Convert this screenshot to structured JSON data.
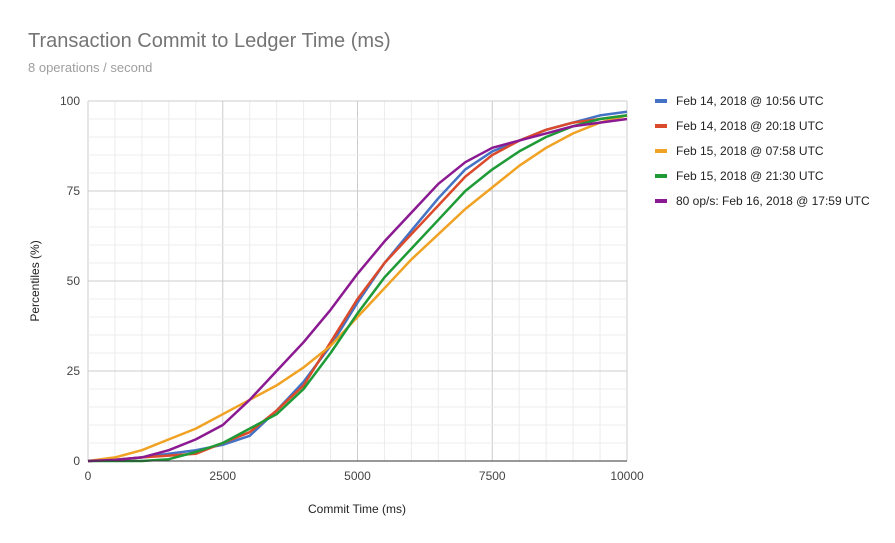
{
  "chart_data": {
    "type": "line",
    "title": "Transaction Commit to Ledger Time (ms)",
    "subtitle": "8 operations / second",
    "xlabel": "Commit Time (ms)",
    "ylabel": "Percentiles (%)",
    "xlim": [
      0,
      10000
    ],
    "ylim": [
      0,
      100
    ],
    "x_ticks": [
      "0",
      "2500",
      "5000",
      "7500",
      "10000"
    ],
    "y_ticks": [
      "0",
      "25",
      "50",
      "75",
      "100"
    ],
    "grid": true,
    "legend_position": "right",
    "series": [
      {
        "name": "Feb 14, 2018 @ 10:56 UTC",
        "color": "#4472c4",
        "points": [
          [
            0,
            0
          ],
          [
            500,
            0.3
          ],
          [
            1000,
            1
          ],
          [
            1500,
            2
          ],
          [
            2000,
            3
          ],
          [
            2500,
            4.5
          ],
          [
            3000,
            7
          ],
          [
            3500,
            14
          ],
          [
            4000,
            22
          ],
          [
            4500,
            32
          ],
          [
            5000,
            44
          ],
          [
            5500,
            55
          ],
          [
            6000,
            64
          ],
          [
            6500,
            73
          ],
          [
            7000,
            81
          ],
          [
            7500,
            86
          ],
          [
            8000,
            89
          ],
          [
            8500,
            92
          ],
          [
            9000,
            94
          ],
          [
            9500,
            96
          ],
          [
            10000,
            97
          ]
        ]
      },
      {
        "name": "Feb 14, 2018 @ 20:18 UTC",
        "color": "#db4a2b",
        "points": [
          [
            0,
            0
          ],
          [
            500,
            0.3
          ],
          [
            1000,
            1
          ],
          [
            1500,
            1.5
          ],
          [
            2000,
            2
          ],
          [
            2500,
            5
          ],
          [
            3000,
            8
          ],
          [
            3500,
            14
          ],
          [
            4000,
            21
          ],
          [
            4500,
            33
          ],
          [
            5000,
            45
          ],
          [
            5500,
            55
          ],
          [
            6000,
            63
          ],
          [
            6500,
            71
          ],
          [
            7000,
            79
          ],
          [
            7500,
            85
          ],
          [
            8000,
            89
          ],
          [
            8500,
            92
          ],
          [
            9000,
            94
          ],
          [
            9500,
            95
          ],
          [
            10000,
            96
          ]
        ]
      },
      {
        "name": "Feb 15, 2018 @ 07:58 UTC",
        "color": "#f0a224",
        "points": [
          [
            0,
            0
          ],
          [
            500,
            1
          ],
          [
            1000,
            3
          ],
          [
            1500,
            6
          ],
          [
            2000,
            9
          ],
          [
            2500,
            13
          ],
          [
            3000,
            17
          ],
          [
            3500,
            21
          ],
          [
            4000,
            26
          ],
          [
            4500,
            32
          ],
          [
            5000,
            40
          ],
          [
            5500,
            48
          ],
          [
            6000,
            56
          ],
          [
            6500,
            63
          ],
          [
            7000,
            70
          ],
          [
            7500,
            76
          ],
          [
            8000,
            82
          ],
          [
            8500,
            87
          ],
          [
            9000,
            91
          ],
          [
            9500,
            94
          ],
          [
            10000,
            96
          ]
        ]
      },
      {
        "name": "Feb 15, 2018 @ 21:30 UTC",
        "color": "#1e9a37",
        "points": [
          [
            0,
            0
          ],
          [
            1000,
            0
          ],
          [
            1500,
            0.5
          ],
          [
            2000,
            2.5
          ],
          [
            2500,
            5
          ],
          [
            3000,
            9
          ],
          [
            3500,
            13
          ],
          [
            4000,
            20
          ],
          [
            4500,
            30
          ],
          [
            5000,
            41
          ],
          [
            5500,
            51
          ],
          [
            6000,
            59
          ],
          [
            6500,
            67
          ],
          [
            7000,
            75
          ],
          [
            7500,
            81
          ],
          [
            8000,
            86
          ],
          [
            8500,
            90
          ],
          [
            9000,
            93
          ],
          [
            9500,
            95
          ],
          [
            10000,
            96
          ]
        ]
      },
      {
        "name": "80 op/s: Feb 16, 2018 @ 17:59 UTC",
        "color": "#8b1a92",
        "points": [
          [
            0,
            0
          ],
          [
            500,
            0.3
          ],
          [
            1000,
            1
          ],
          [
            1500,
            3
          ],
          [
            2000,
            6
          ],
          [
            2500,
            10
          ],
          [
            3000,
            17
          ],
          [
            3500,
            25
          ],
          [
            4000,
            33
          ],
          [
            4500,
            42
          ],
          [
            5000,
            52
          ],
          [
            5500,
            61
          ],
          [
            6000,
            69
          ],
          [
            6500,
            77
          ],
          [
            7000,
            83
          ],
          [
            7500,
            87
          ],
          [
            8000,
            89
          ],
          [
            8500,
            91
          ],
          [
            9000,
            93
          ],
          [
            9500,
            94
          ],
          [
            10000,
            95
          ]
        ]
      }
    ]
  }
}
